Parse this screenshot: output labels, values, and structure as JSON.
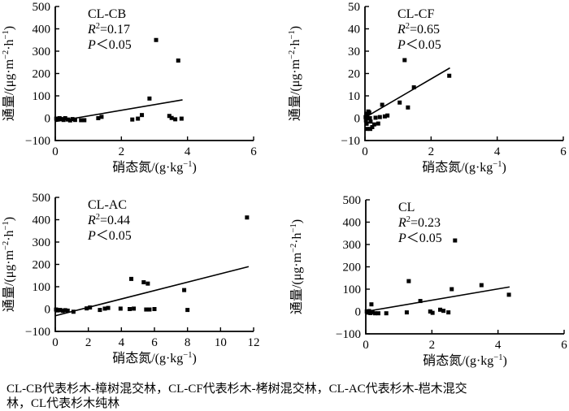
{
  "figure": {
    "background": "#ffffff",
    "ink": "#000000"
  },
  "axis_titles": {
    "y_parts": [
      {
        "t": "通量/(μg·m"
      },
      {
        "t": "−2",
        "sup": true
      },
      {
        "t": "·h"
      },
      {
        "t": "−1",
        "sup": true
      },
      {
        "t": ")"
      }
    ],
    "x_parts": [
      {
        "t": "硝态氮/(g·kg"
      },
      {
        "t": "−1",
        "sup": true
      },
      {
        "t": ")"
      }
    ]
  },
  "chart_data": [
    {
      "id": "cl-cb",
      "type": "scatter",
      "title": "CL-CB",
      "r2_label": {
        "var": "R",
        "sup": "2",
        "rest": "=0.17"
      },
      "p_label": {
        "var": "P",
        "rest": "＜0.05"
      },
      "xlim": [
        0,
        6
      ],
      "ylim": [
        -100,
        500
      ],
      "xticks": [
        0,
        2,
        4,
        6
      ],
      "yticks": [
        -100,
        0,
        100,
        200,
        300,
        400,
        500
      ],
      "points": [
        [
          0.03,
          -2
        ],
        [
          0.08,
          -6
        ],
        [
          0.13,
          0
        ],
        [
          0.18,
          -4
        ],
        [
          0.25,
          -8
        ],
        [
          0.3,
          0
        ],
        [
          0.38,
          -6
        ],
        [
          0.45,
          -10
        ],
        [
          0.52,
          -4
        ],
        [
          0.6,
          -8
        ],
        [
          0.78,
          -9
        ],
        [
          0.88,
          -9
        ],
        [
          1.3,
          0
        ],
        [
          1.4,
          6
        ],
        [
          2.33,
          -6
        ],
        [
          2.5,
          -2
        ],
        [
          2.62,
          14
        ],
        [
          2.85,
          88
        ],
        [
          3.05,
          350
        ],
        [
          3.45,
          10
        ],
        [
          3.52,
          1
        ],
        [
          3.63,
          -5
        ],
        [
          3.72,
          258
        ],
        [
          3.82,
          -2
        ]
      ],
      "trend": [
        [
          0,
          -15
        ],
        [
          3.85,
          82
        ]
      ]
    },
    {
      "id": "cl-cf",
      "type": "scatter",
      "title": "CL-CF",
      "r2_label": {
        "var": "R",
        "sup": "2",
        "rest": "=0.65"
      },
      "p_label": {
        "var": "P",
        "rest": "＜0.05"
      },
      "xlim": [
        0,
        6
      ],
      "ylim": [
        -10,
        50
      ],
      "xticks": [
        0,
        2,
        4,
        6
      ],
      "yticks": [
        -10,
        0,
        10,
        20,
        30,
        40,
        50
      ],
      "points": [
        [
          0.02,
          0.5
        ],
        [
          0.03,
          -1
        ],
        [
          0.04,
          2
        ],
        [
          0.05,
          -2.5
        ],
        [
          0.07,
          1
        ],
        [
          0.08,
          0
        ],
        [
          0.1,
          3
        ],
        [
          0.13,
          2.5
        ],
        [
          0.15,
          0
        ],
        [
          0.17,
          -1.5
        ],
        [
          0.05,
          -4.8
        ],
        [
          0.16,
          -4.8
        ],
        [
          0.22,
          -4
        ],
        [
          0.28,
          -2.8
        ],
        [
          0.32,
          0.2
        ],
        [
          0.4,
          -2.4
        ],
        [
          0.45,
          0.5
        ],
        [
          0.52,
          6
        ],
        [
          0.6,
          0.8
        ],
        [
          0.68,
          1.2
        ],
        [
          1.05,
          7
        ],
        [
          1.2,
          26
        ],
        [
          1.3,
          4.8
        ],
        [
          1.48,
          13.8
        ],
        [
          2.55,
          19
        ]
      ],
      "trend": [
        [
          0,
          0.3
        ],
        [
          2.57,
          22.5
        ]
      ]
    },
    {
      "id": "cl-ac",
      "type": "scatter",
      "title": "CL-AC",
      "r2_label": {
        "var": "R",
        "sup": "2",
        "rest": "=0.44"
      },
      "p_label": {
        "var": "P",
        "rest": "＜0.05"
      },
      "xlim": [
        0,
        12
      ],
      "ylim": [
        -100,
        500
      ],
      "xticks": [
        0,
        2,
        4,
        6,
        8,
        10,
        12
      ],
      "yticks": [
        -100,
        0,
        100,
        200,
        300,
        400,
        500
      ],
      "points": [
        [
          0.05,
          -2
        ],
        [
          0.15,
          -6
        ],
        [
          0.3,
          -4
        ],
        [
          0.45,
          -8
        ],
        [
          0.6,
          -5
        ],
        [
          0.75,
          -7
        ],
        [
          1.1,
          -12
        ],
        [
          1.9,
          3
        ],
        [
          2.1,
          7
        ],
        [
          2.7,
          -4
        ],
        [
          3.0,
          2
        ],
        [
          3.2,
          5
        ],
        [
          3.95,
          2
        ],
        [
          4.5,
          0
        ],
        [
          4.6,
          135
        ],
        [
          4.75,
          2
        ],
        [
          5.35,
          120
        ],
        [
          5.5,
          -2
        ],
        [
          5.6,
          114
        ],
        [
          5.7,
          -2
        ],
        [
          6.0,
          0
        ],
        [
          7.8,
          85
        ],
        [
          8.0,
          -4
        ],
        [
          11.6,
          410
        ]
      ],
      "trend": [
        [
          0,
          -30
        ],
        [
          11.7,
          190
        ]
      ]
    },
    {
      "id": "cl",
      "type": "scatter",
      "title": "CL",
      "r2_label": {
        "var": "R",
        "sup": "2",
        "rest": "=0.23"
      },
      "p_label": {
        "var": "P",
        "rest": "＜0.05"
      },
      "xlim": [
        0,
        6
      ],
      "ylim": [
        -100,
        500
      ],
      "xticks": [
        0,
        2,
        4,
        6
      ],
      "yticks": [
        -100,
        0,
        100,
        200,
        300,
        400,
        500
      ],
      "points": [
        [
          0.03,
          0
        ],
        [
          0.06,
          -5
        ],
        [
          0.1,
          2
        ],
        [
          0.14,
          -7
        ],
        [
          0.2,
          -3
        ],
        [
          0.17,
          32
        ],
        [
          0.28,
          -8
        ],
        [
          0.38,
          -8
        ],
        [
          0.62,
          -8
        ],
        [
          1.24,
          -4
        ],
        [
          1.3,
          136
        ],
        [
          1.65,
          47
        ],
        [
          1.95,
          0
        ],
        [
          2.02,
          -6
        ],
        [
          2.25,
          8
        ],
        [
          2.35,
          3
        ],
        [
          2.5,
          -4
        ],
        [
          2.6,
          100
        ],
        [
          2.7,
          318
        ],
        [
          3.5,
          118
        ],
        [
          4.33,
          75
        ]
      ],
      "trend": [
        [
          0,
          0
        ],
        [
          4.35,
          110
        ]
      ]
    }
  ],
  "caption": {
    "lines": [
      "CL-CB代表杉木-樟树混交林，CL-CF代表杉木-栲树混交林，CL-AC代表杉木-桤木混交",
      "林，CL代表杉木纯林"
    ]
  }
}
